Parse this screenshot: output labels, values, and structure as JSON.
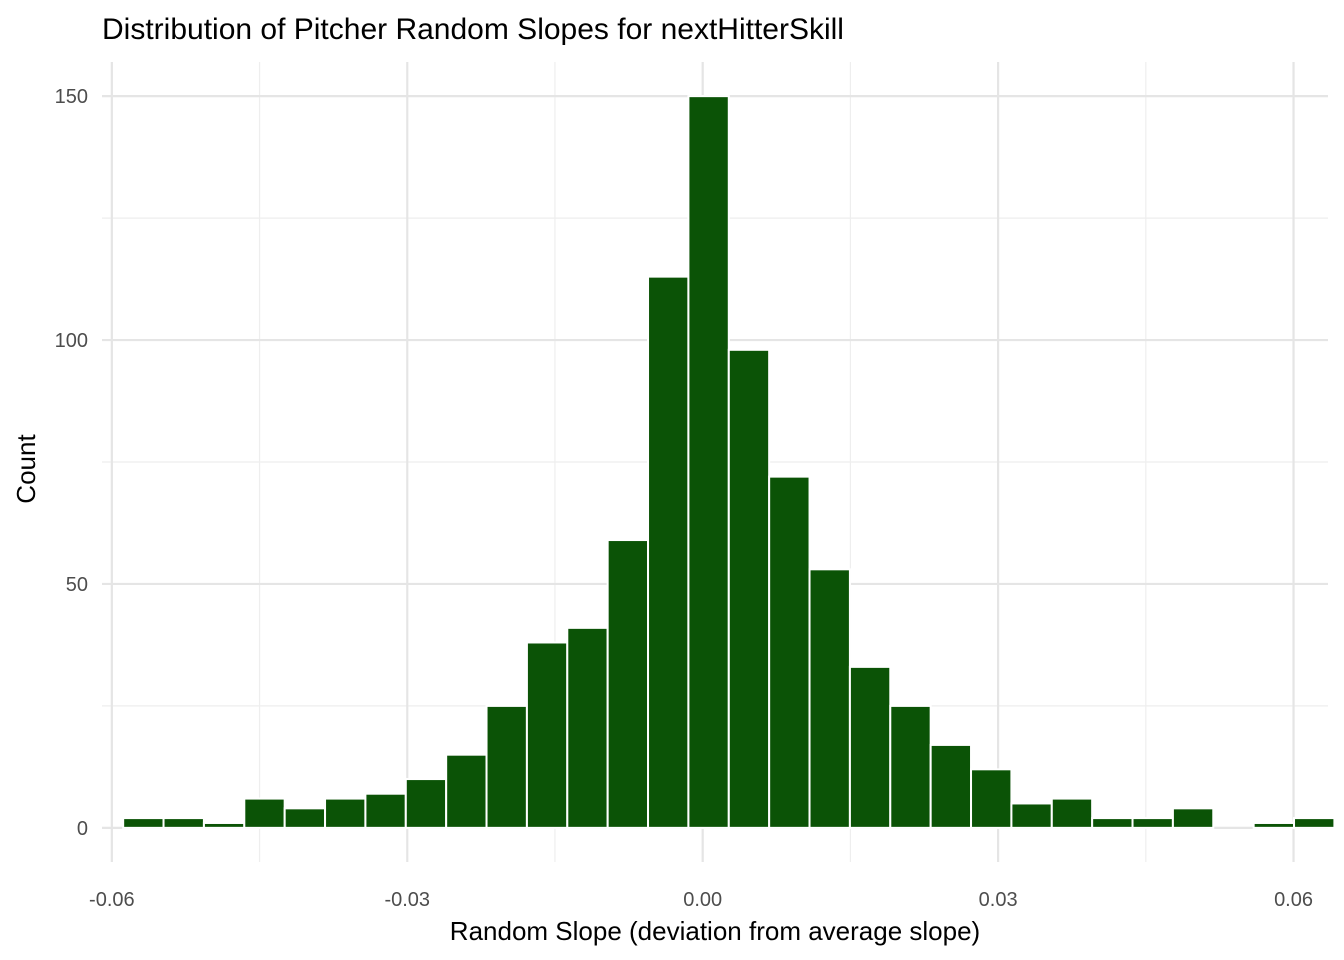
{
  "chart_data": {
    "type": "bar",
    "title": "Distribution of Pitcher Random Slopes for nextHitterSkill",
    "xlabel": "Random Slope (deviation from average slope)",
    "ylabel": "Count",
    "xlim": [
      -0.061,
      0.0635
    ],
    "ylim": [
      -7,
      157
    ],
    "x_ticks": [
      -0.06,
      -0.03,
      0.0,
      0.03,
      0.06
    ],
    "x_tick_labels": [
      "-0.06",
      "-0.03",
      "0.00",
      "0.03",
      "0.06"
    ],
    "y_ticks": [
      0,
      50,
      100,
      150
    ],
    "y_tick_labels": [
      "0",
      "50",
      "100",
      "150"
    ],
    "x_minor_ticks": [
      -0.045,
      -0.015,
      0.015,
      0.045
    ],
    "y_minor_ticks": [
      25,
      75,
      125
    ],
    "bin_width": 0.0041,
    "bin_centers": [
      -0.0568,
      -0.0527,
      -0.0486,
      -0.0445,
      -0.0404,
      -0.0363,
      -0.0322,
      -0.0281,
      -0.024,
      -0.0199,
      -0.0158,
      -0.0117,
      -0.0076,
      -0.0035,
      0.0006,
      0.0047,
      0.0088,
      0.0129,
      0.017,
      0.0211,
      0.0252,
      0.0293,
      0.0334,
      0.0375,
      0.0416,
      0.0457,
      0.0498,
      0.0539,
      0.058,
      0.0621
    ],
    "values": [
      2,
      2,
      1,
      6,
      4,
      6,
      7,
      10,
      15,
      25,
      38,
      41,
      59,
      113,
      150,
      98,
      72,
      53,
      33,
      25,
      17,
      12,
      5,
      6,
      2,
      2,
      4,
      0,
      1,
      2
    ],
    "bar_color": "#0b5306",
    "bar_outline": "#ffffff",
    "grid": true,
    "legend": "none"
  }
}
